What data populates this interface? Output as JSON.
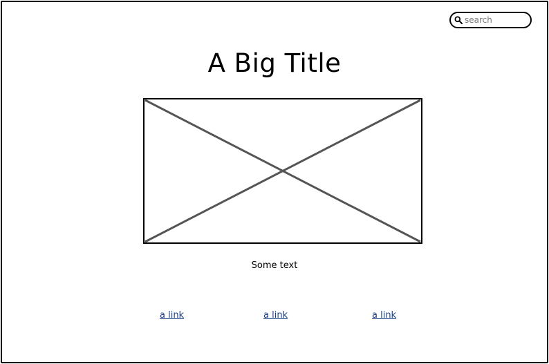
{
  "search": {
    "placeholder": "search",
    "icon": "search-icon"
  },
  "header": {
    "title": "A Big Title"
  },
  "main": {
    "image": {
      "icon": "image-placeholder-icon"
    },
    "text": "Some text"
  },
  "links": [
    {
      "label": "a link"
    },
    {
      "label": "a link"
    },
    {
      "label": "a link"
    }
  ],
  "colors": {
    "link": "#1a3f8a",
    "border": "#000000",
    "placeholder_cross": "#555555"
  }
}
